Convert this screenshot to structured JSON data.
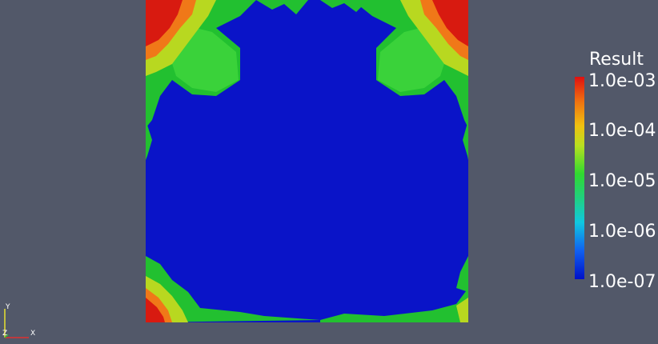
{
  "legend": {
    "title": "Result",
    "ticks": [
      "1.0e-03",
      "1.0e-04",
      "1.0e-05",
      "1.0e-06",
      "1.0e-07"
    ]
  },
  "axes": {
    "y_label": "Y",
    "z_label": "Z",
    "x_label": "X"
  },
  "colors": {
    "background": "#525869",
    "low": "#0010c8",
    "mid": "#10c030",
    "high": "#e01010"
  }
}
